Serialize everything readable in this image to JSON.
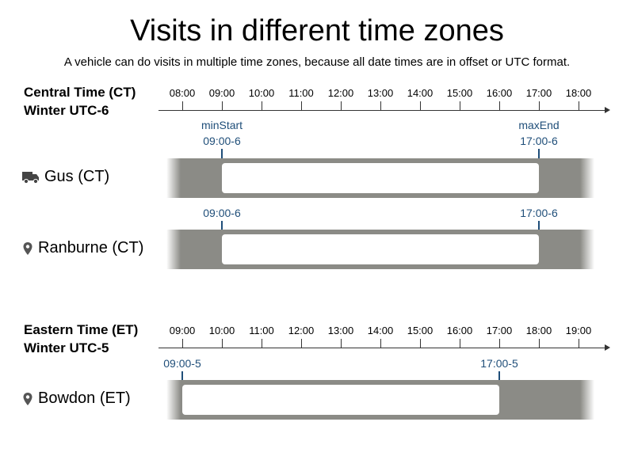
{
  "title": "Visits in different time zones",
  "subtitle": "A vehicle can do visits in multiple time zones, because all date times are in offset or UTC format.",
  "colors": {
    "axis": "#333333",
    "marker": "#1f4e79",
    "band": "#8b8b86",
    "window": "#ffffff"
  },
  "central": {
    "zone_line1": "Central Time (CT)",
    "zone_line2": "Winter UTC-6",
    "ticks": [
      "08:00",
      "09:00",
      "10:00",
      "11:00",
      "12:00",
      "13:00",
      "14:00",
      "15:00",
      "16:00",
      "17:00",
      "18:00"
    ],
    "vehicle": {
      "icon": "truck-icon",
      "label": "Gus (CT)",
      "start_label": "minStart",
      "start_time": "09:00-6",
      "end_label": "maxEnd",
      "end_time": "17:00-6",
      "window_start_hour": 9,
      "window_end_hour": 17
    },
    "visit": {
      "icon": "location-pin-icon",
      "label": "Ranburne (CT)",
      "start_time": "09:00-6",
      "end_time": "17:00-6",
      "window_start_hour": 9,
      "window_end_hour": 17
    }
  },
  "eastern": {
    "zone_line1": "Eastern Time (ET)",
    "zone_line2": "Winter UTC-5",
    "ticks": [
      "09:00",
      "10:00",
      "11:00",
      "12:00",
      "13:00",
      "14:00",
      "15:00",
      "16:00",
      "17:00",
      "18:00",
      "19:00"
    ],
    "visit": {
      "icon": "location-pin-icon",
      "label": "Bowdon (ET)",
      "start_time": "09:00-5",
      "end_time": "17:00-5",
      "window_start_hour": 9,
      "window_end_hour": 17
    }
  }
}
